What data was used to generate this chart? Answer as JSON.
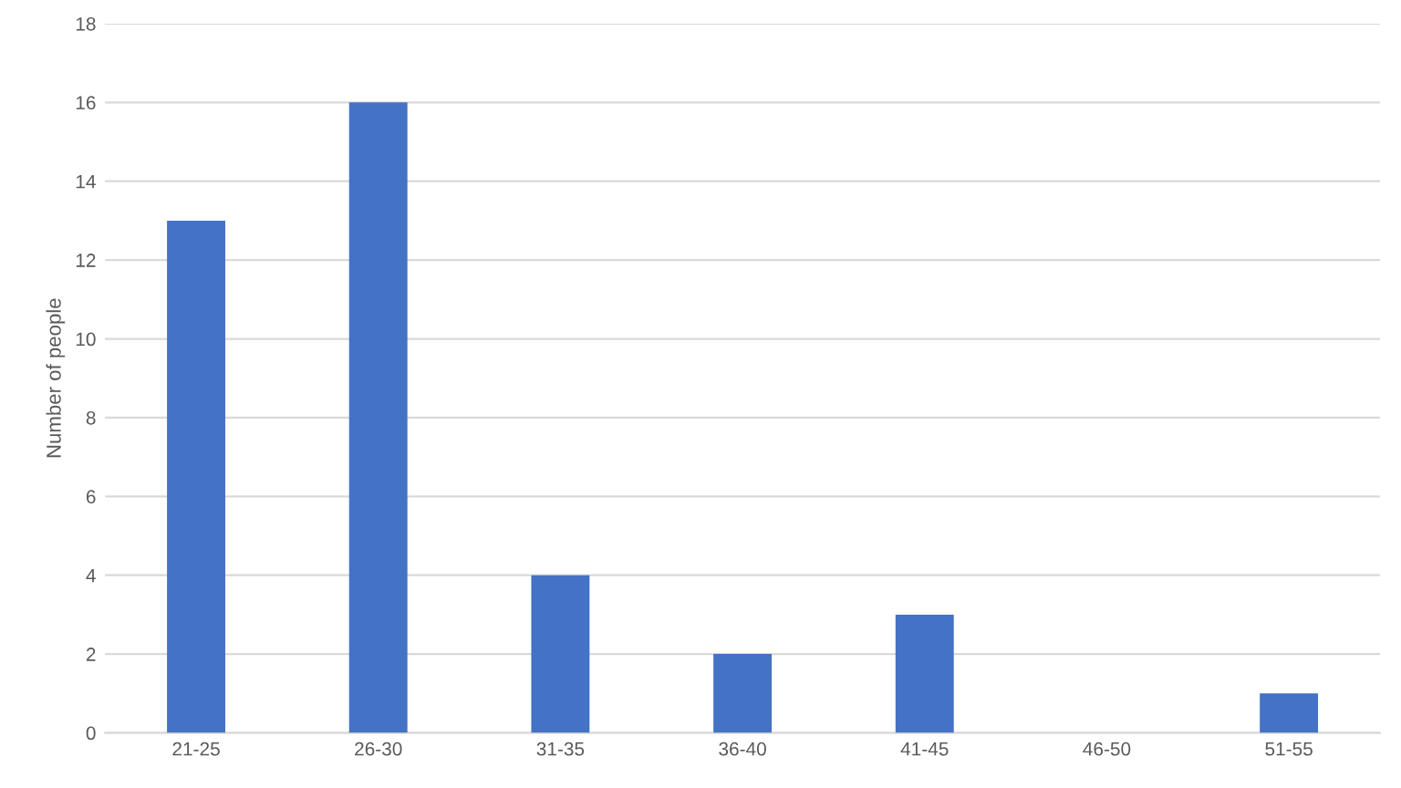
{
  "chart_data": {
    "type": "bar",
    "ylabel": "Number of people",
    "categories": [
      "21-25",
      "26-30",
      "31-35",
      "36-40",
      "41-45",
      "46-50",
      "51-55"
    ],
    "values": [
      13,
      16,
      4,
      2,
      3,
      0,
      1
    ],
    "color": "#4472c4",
    "ylim": [
      0,
      18
    ],
    "yticks": [
      0,
      2,
      4,
      6,
      8,
      10,
      12,
      14,
      16,
      18
    ],
    "grid": "y"
  }
}
